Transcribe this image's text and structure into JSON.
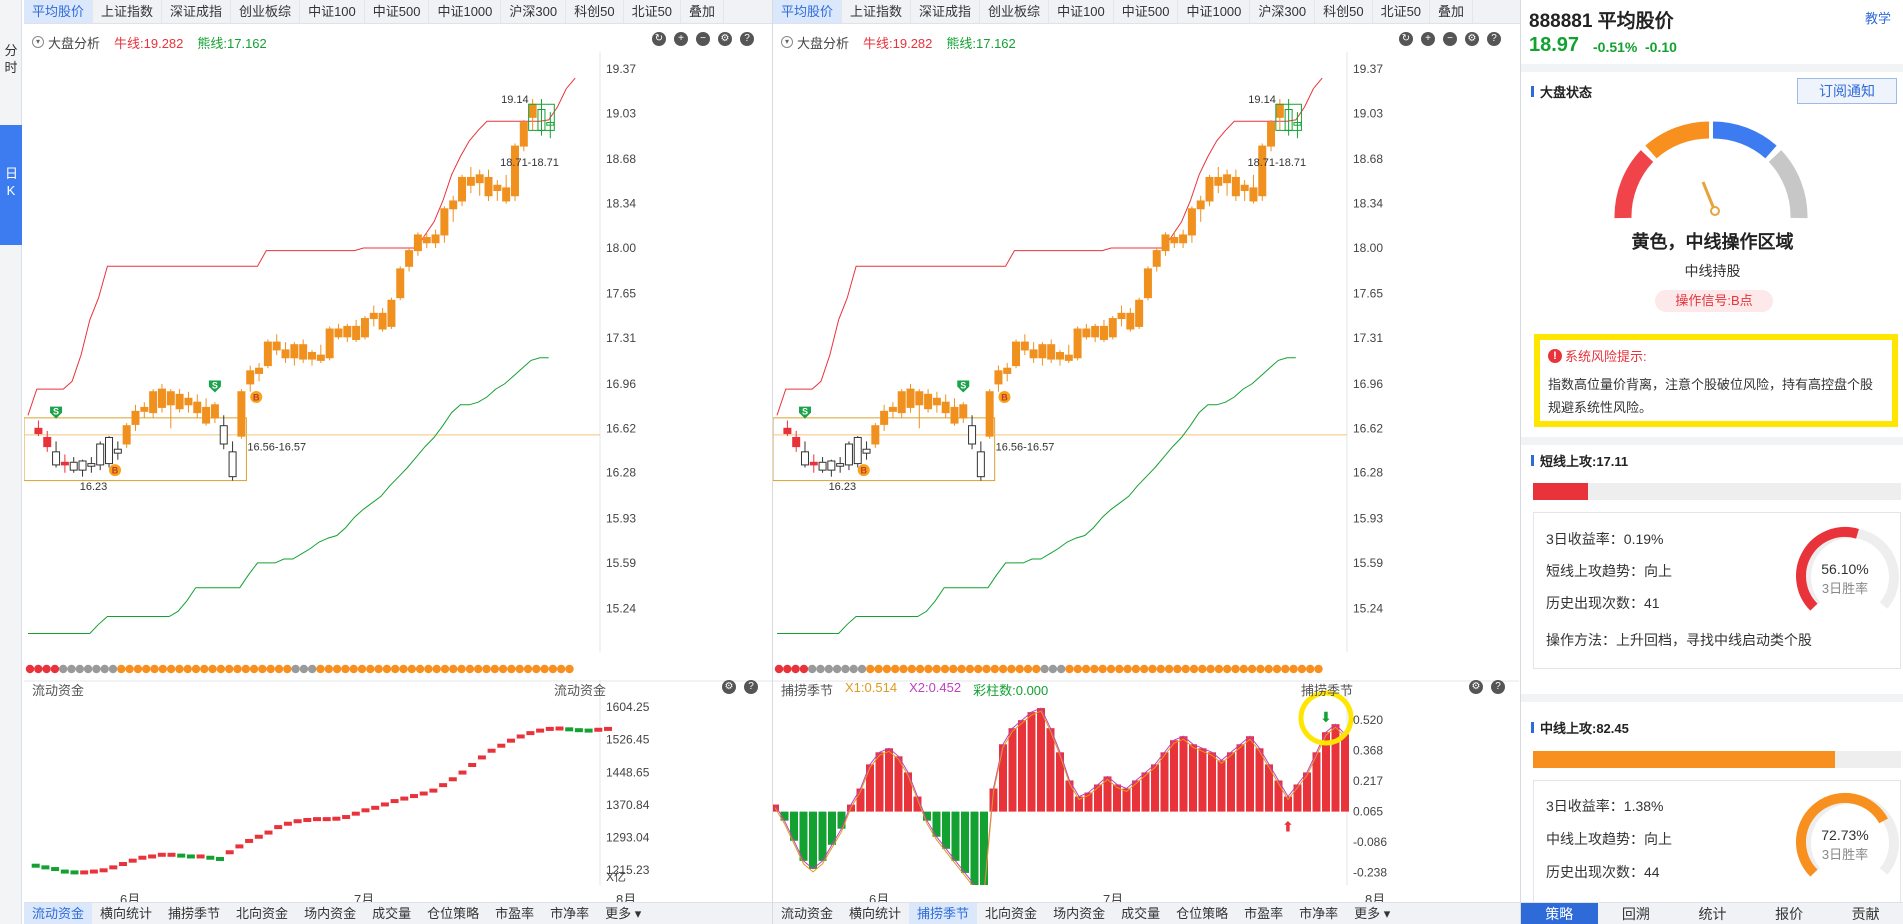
{
  "left_sidebar": {
    "fenshi": "分时",
    "rik": "日K"
  },
  "top_tabs": [
    "平均股价",
    "上证指数",
    "深证成指",
    "创业板综",
    "中证100",
    "中证500",
    "中证1000",
    "沪深300",
    "科创50",
    "北证50",
    "叠加"
  ],
  "indicator": {
    "name": "大盘分析",
    "bull_label": "牛线:19.282",
    "bear_label": "熊线:17.162"
  },
  "price_axis": [
    "19.37",
    "19.03",
    "18.68",
    "18.34",
    "18.00",
    "17.65",
    "17.31",
    "16.96",
    "16.62",
    "16.28",
    "15.93",
    "15.59",
    "15.24"
  ],
  "annotations": {
    "high_label": "19.14",
    "recent_box": "18.71-18.71",
    "mid_box": "16.56-16.57",
    "low_label": "16.23"
  },
  "flow_panel": {
    "title": "流动资金",
    "title_right": "流动资金",
    "axis": [
      "1604.25",
      "1526.45",
      "1448.65",
      "1370.84",
      "1293.04",
      "1215.23"
    ],
    "unit": "X亿"
  },
  "cycle_panel": {
    "title": "捕捞季节",
    "x1": "X1:0.514",
    "x2": "X2:0.452",
    "bars": "彩柱数:0.000",
    "title_right": "捕捞季节",
    "axis": [
      "0.520",
      "0.368",
      "0.217",
      "0.065",
      "-0.086",
      "-0.238"
    ]
  },
  "months": [
    "6月",
    "7月",
    "8月"
  ],
  "bottom_tabs": [
    "流动资金",
    "横向统计",
    "捕捞季节",
    "北向资金",
    "场内资金",
    "成交量",
    "仓位策略",
    "市盈率",
    "市净率",
    "更多 ▾"
  ],
  "right_panel": {
    "code_title": "888881 平均股价",
    "teach": "教学",
    "price": "18.97",
    "pct": "-0.51%",
    "chg": "-0.10",
    "market_state_title": "大盘状态",
    "subscribe": "订阅通知",
    "state_main": "黄色，中线操作区域",
    "state_sub": "中线持股",
    "signal": "操作信号:B点",
    "risk_title": "系统风险提示:",
    "risk_body": "指数高位量价背离，注意个股破位风险，持有高控盘个股规避系统性风险。",
    "short": {
      "title": "短线上攻:17.11",
      "progress": 0.15,
      "r1": "3日收益率：0.19%",
      "r2": "短线上攻趋势：向上",
      "r3": "历史出现次数：41",
      "r4": "操作方法：上升回档，寻找中线启动类个股",
      "rate": "56.10%",
      "rate_label": "3日胜率",
      "rate_val": 0.561
    },
    "mid": {
      "title": "中线上攻:82.45",
      "progress": 0.82,
      "r1": "3日收益率：1.38%",
      "r2": "中线上攻趋势：向上",
      "r3": "历史出现次数：44",
      "rate": "72.73%",
      "rate_label": "3日胜率",
      "rate_val": 0.7273
    },
    "bottom_tabs": [
      "策略",
      "回溯",
      "统计",
      "报价",
      "贡献"
    ]
  },
  "colors": {
    "up": "#e8333b",
    "down": "#13a132",
    "accent": "#2f6bd8",
    "candle": "#f0901e",
    "highlight": "#ffe600"
  },
  "chart_data": [
    {
      "type": "candlestick",
      "title": "大盘分析",
      "ylim": [
        15.0,
        19.5
      ],
      "series": [
        {
          "name": "牛线",
          "last": 19.282
        },
        {
          "name": "熊线",
          "last": 17.162
        }
      ]
    },
    {
      "type": "bar",
      "title": "捕捞季节",
      "series": [
        {
          "name": "X1",
          "last": 0.514
        },
        {
          "name": "X2",
          "last": 0.452
        }
      ],
      "ylim": [
        -0.3,
        0.65
      ]
    }
  ]
}
